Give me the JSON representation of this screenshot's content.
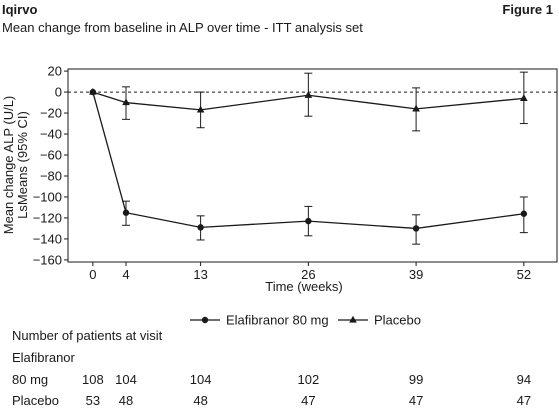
{
  "header": {
    "brand": "Iqirvo",
    "figure_label": "Figure 1",
    "subtitle": "Mean change from baseline in ALP over time - ITT analysis set"
  },
  "chart_data": {
    "type": "line",
    "title": "Mean change from baseline in ALP over time - ITT analysis set",
    "xlabel": "Time (weeks)",
    "ylabel_line1": "Mean change ALP (U/L)",
    "ylabel_line2": "LsMeans (95% CI)",
    "x_ticks": [
      0,
      4,
      13,
      26,
      39,
      52
    ],
    "y_ticks": [
      20,
      0,
      -20,
      -40,
      -60,
      -80,
      -100,
      -120,
      -140,
      -160
    ],
    "xlim": [
      -3,
      56
    ],
    "ylim": [
      -162,
      22
    ],
    "reference_line": 0,
    "grid": false,
    "legend_position": "bottom",
    "series": [
      {
        "name": "Elafibranor 80 mg",
        "marker": "circle",
        "x": [
          0,
          4,
          13,
          26,
          39,
          52
        ],
        "y": [
          0,
          -115,
          -129,
          -123,
          -130,
          -116
        ],
        "ci_low": [
          0,
          -127,
          -141,
          -137,
          -145,
          -134
        ],
        "ci_high": [
          0,
          -104,
          -118,
          -109,
          -117,
          -100
        ]
      },
      {
        "name": "Placebo",
        "marker": "triangle",
        "x": [
          0,
          4,
          13,
          26,
          39,
          52
        ],
        "y": [
          0,
          -10,
          -17,
          -3,
          -16,
          -6
        ],
        "ci_low": [
          0,
          -26,
          -34,
          -23,
          -37,
          -30
        ],
        "ci_high": [
          0,
          5,
          0,
          18,
          4,
          19
        ]
      }
    ]
  },
  "patients_table": {
    "heading": "Number of patients at visit",
    "rows": [
      {
        "label_line1": "Elafibranor",
        "label_line2": "80 mg",
        "values": [
          "108",
          "104",
          "104",
          "102",
          "99",
          "94"
        ]
      },
      {
        "label_line1": "Placebo",
        "label_line2": "",
        "values": [
          "53",
          "48",
          "48",
          "47",
          "47",
          "47"
        ]
      }
    ]
  }
}
